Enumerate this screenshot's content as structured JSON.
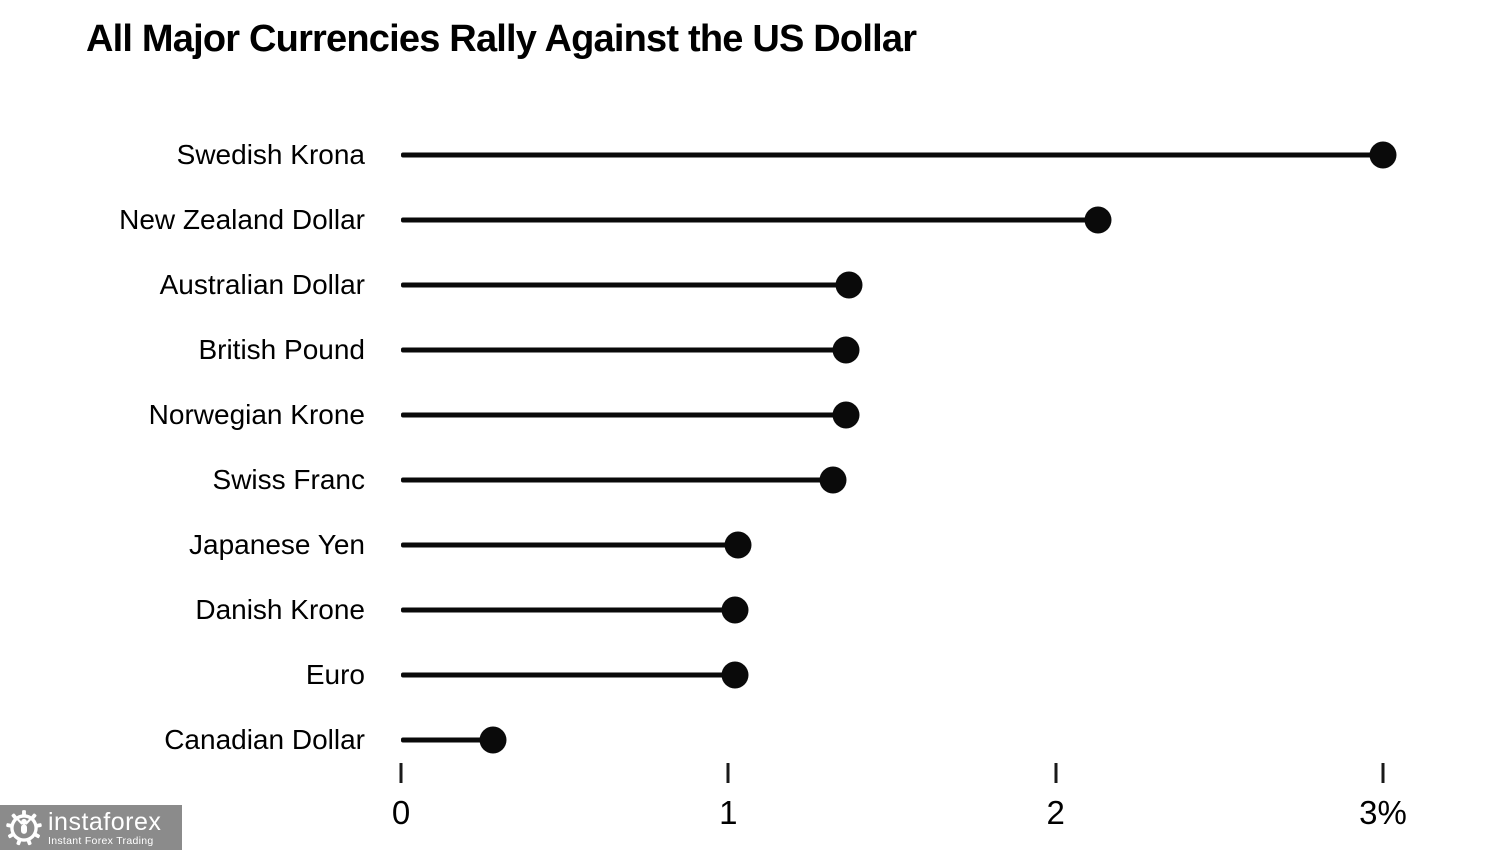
{
  "page": {
    "background": "#ffffff",
    "text_color": "#000000"
  },
  "chart_data": {
    "type": "bar",
    "style": "lollipop",
    "orientation": "horizontal",
    "title": "All Major Currencies Rally Against the US Dollar",
    "categories": [
      "Swedish Krona",
      "New Zealand Dollar",
      "Australian Dollar",
      "British Pound",
      "Norwegian Krone",
      "Swiss Franc",
      "Japanese Yen",
      "Danish Krone",
      "Euro",
      "Canadian Dollar"
    ],
    "values": [
      3.0,
      2.13,
      1.37,
      1.36,
      1.36,
      1.32,
      1.03,
      1.02,
      1.02,
      0.28
    ],
    "xlabel": "",
    "ylabel": "",
    "xlim": [
      0,
      3
    ],
    "x_ticks": [
      {
        "value": 0,
        "label": "0"
      },
      {
        "value": 1,
        "label": "1"
      },
      {
        "value": 2,
        "label": "2"
      },
      {
        "value": 3,
        "label": "3%"
      }
    ],
    "unit": "percent change vs USD",
    "grid": false,
    "legend": null,
    "marker_color": "#0a0a0a",
    "line_color": "#0a0a0a"
  },
  "watermark": {
    "brand": "instaforex",
    "tagline": "Instant Forex Trading",
    "bg_color": "#8b8b8b",
    "text_color": "#ffffff",
    "icon": "gear-person-icon"
  }
}
